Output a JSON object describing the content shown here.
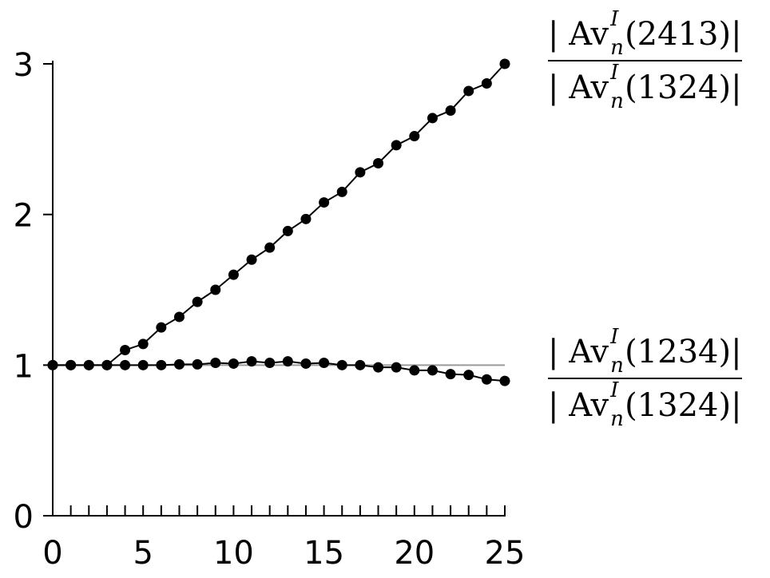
{
  "chart_data": {
    "type": "line",
    "x": [
      0,
      1,
      2,
      3,
      4,
      5,
      6,
      7,
      8,
      9,
      10,
      11,
      12,
      13,
      14,
      15,
      16,
      17,
      18,
      19,
      20,
      21,
      22,
      23,
      24,
      25
    ],
    "series": [
      {
        "values": [
          1.0,
          1.0,
          1.0,
          1.0,
          1.1,
          1.14,
          1.25,
          1.32,
          1.42,
          1.5,
          1.6,
          1.7,
          1.78,
          1.89,
          1.97,
          2.08,
          2.15,
          2.28,
          2.34,
          2.46,
          2.52,
          2.64,
          2.69,
          2.82,
          2.87,
          3.0
        ]
      },
      {
        "values": [
          1.0,
          1.0,
          1.0,
          1.0,
          1.0,
          1.0,
          1.0,
          1.005,
          1.005,
          1.015,
          1.01,
          1.025,
          1.015,
          1.025,
          1.01,
          1.015,
          1.0,
          1.0,
          0.985,
          0.985,
          0.965,
          0.965,
          0.94,
          0.935,
          0.905,
          0.895
        ]
      }
    ],
    "reference_line": 1,
    "xlim": [
      0,
      25
    ],
    "ylim": [
      0,
      3
    ],
    "x_ticks": [
      "0",
      "5",
      "10",
      "15",
      "20",
      "25"
    ],
    "y_ticks": [
      "0",
      "1",
      "2",
      "3"
    ],
    "annotations": {
      "upper": {
        "num_arg": "(2413)",
        "den_arg": "(1324)",
        "av": "Av",
        "sup": "I",
        "sub": "n"
      },
      "lower": {
        "num_arg": "(1234)",
        "den_arg": "(1324)",
        "av": "Av",
        "sup": "I",
        "sub": "n"
      }
    }
  }
}
